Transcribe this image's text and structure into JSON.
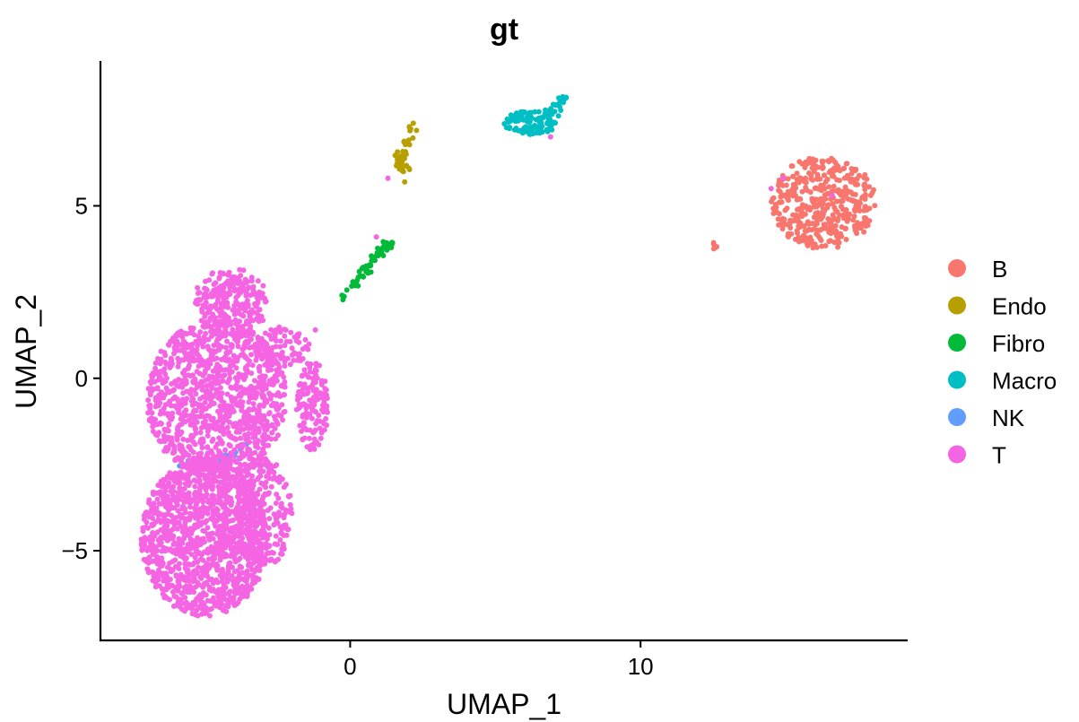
{
  "chart_data": {
    "type": "scatter",
    "title": "gt",
    "xlabel": "UMAP_1",
    "ylabel": "UMAP_2",
    "xlim": [
      -8.6,
      19.2
    ],
    "ylim": [
      -7.6,
      9.2
    ],
    "x_ticks": [
      0,
      10
    ],
    "y_ticks": [
      -5,
      0,
      5
    ],
    "x_tick_labels": [
      "0",
      "10"
    ],
    "y_tick_labels": [
      "−5",
      "0",
      "5"
    ],
    "grid": false,
    "legend_position": "right",
    "series": [
      {
        "name": "B",
        "color": "#F8766D",
        "clusters": [
          {
            "shape": "ellipse",
            "center": [
              16.3,
              5.1
            ],
            "radius": [
              1.8,
              1.35
            ],
            "count": 420
          },
          {
            "shape": "ellipse",
            "center": [
              12.5,
              3.85
            ],
            "radius": [
              0.15,
              0.1
            ],
            "count": 6
          }
        ]
      },
      {
        "name": "Endo",
        "color": "#B79F00",
        "clusters": [
          {
            "shape": "curve",
            "points": [
              [
                2.1,
                7.3
              ],
              [
                1.9,
                6.8
              ],
              [
                1.7,
                6.4
              ],
              [
                1.7,
                6.1
              ],
              [
                2.1,
                6.0
              ]
            ],
            "spread": 0.1,
            "count": 45
          }
        ]
      },
      {
        "name": "Fibro",
        "color": "#00BA38",
        "clusters": [
          {
            "shape": "curve",
            "points": [
              [
                -0.3,
                2.2
              ],
              [
                0.3,
                2.9
              ],
              [
                0.9,
                3.5
              ],
              [
                1.4,
                3.9
              ]
            ],
            "spread": 0.07,
            "count": 60
          }
        ]
      },
      {
        "name": "Macro",
        "color": "#00BFC4",
        "clusters": [
          {
            "shape": "ellipse",
            "center": [
              6.2,
              7.4
            ],
            "radius": [
              0.9,
              0.35
            ],
            "count": 110
          },
          {
            "shape": "curve",
            "points": [
              [
                6.8,
                7.6
              ],
              [
                7.1,
                7.9
              ],
              [
                7.4,
                8.2
              ]
            ],
            "spread": 0.1,
            "count": 25
          }
        ]
      },
      {
        "name": "NK",
        "color": "#619CFF",
        "clusters": [
          {
            "shape": "curve",
            "points": [
              [
                -5.8,
                -2.5
              ],
              [
                -5.0,
                -2.5
              ],
              [
                -4.2,
                -2.3
              ],
              [
                -3.6,
                -2.0
              ]
            ],
            "spread": 0.08,
            "count": 40
          }
        ]
      },
      {
        "name": "T",
        "color": "#F564E3",
        "clusters": [
          {
            "shape": "ellipse",
            "center": [
              -5.0,
              -4.6
            ],
            "radius": [
              2.2,
              2.3
            ],
            "count": 1300
          },
          {
            "shape": "ellipse",
            "center": [
              -4.6,
              -0.6
            ],
            "radius": [
              2.4,
              2.3
            ],
            "count": 1100
          },
          {
            "shape": "ellipse",
            "center": [
              -4.1,
              2.2
            ],
            "radius": [
              1.3,
              1.0
            ],
            "count": 260
          },
          {
            "shape": "ellipse",
            "center": [
              -3.0,
              -3.9
            ],
            "radius": [
              1.0,
              1.6
            ],
            "count": 240
          },
          {
            "shape": "ellipse",
            "center": [
              -1.3,
              -0.8
            ],
            "radius": [
              0.55,
              1.3
            ],
            "count": 140
          },
          {
            "shape": "ellipse",
            "center": [
              -2.3,
              0.9
            ],
            "radius": [
              0.9,
              0.6
            ],
            "count": 80
          },
          {
            "shape": "scatter",
            "points": [
              [
                0.9,
                4.1
              ],
              [
                1.3,
                5.8
              ],
              [
                6.9,
                7.0
              ],
              [
                14.5,
                5.5
              ],
              [
                14.9,
                5.8
              ],
              [
                16.6,
                5.3
              ],
              [
                -1.2,
                1.4
              ]
            ]
          }
        ]
      }
    ]
  }
}
